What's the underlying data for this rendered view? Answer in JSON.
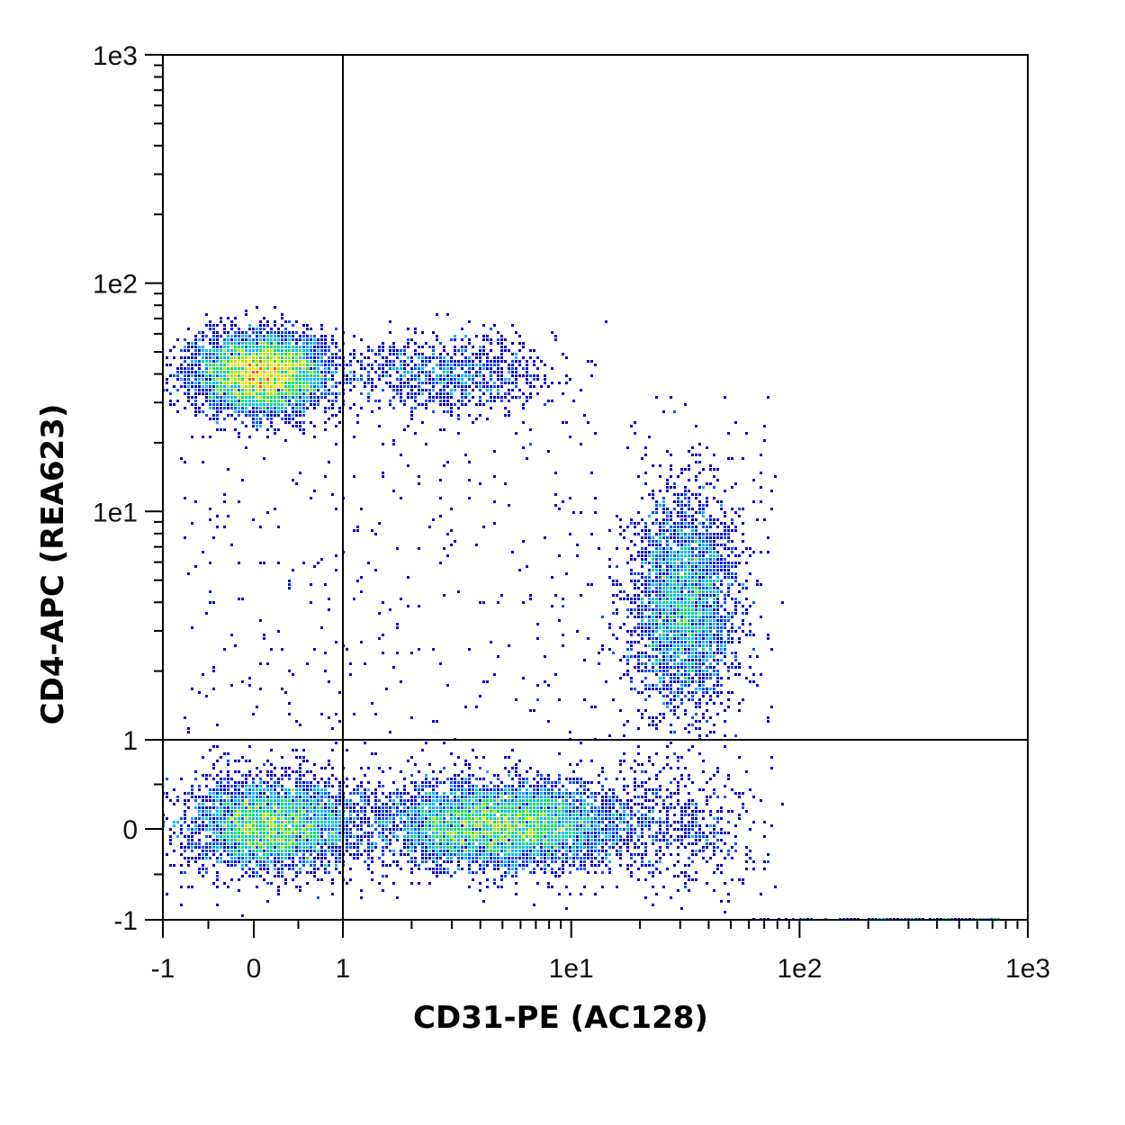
{
  "chart_data": {
    "type": "scatter",
    "subtype": "flow-cytometry density dot plot (hlog scale)",
    "xlabel": "CD31-PE (AC128)",
    "ylabel": "CD4-APC (REA623)",
    "x_scale": "hybrid-log",
    "y_scale": "hybrid-log",
    "xlim": [
      -1,
      1000
    ],
    "ylim": [
      -1,
      1000
    ],
    "x_ticks": [
      {
        "value": -1,
        "label": "-1"
      },
      {
        "value": 0,
        "label": "0"
      },
      {
        "value": 1,
        "label": "1"
      },
      {
        "value": 10,
        "label": "1e1"
      },
      {
        "value": 100,
        "label": "1e2"
      },
      {
        "value": 1000,
        "label": "1e3"
      }
    ],
    "y_ticks": [
      {
        "value": -1,
        "label": "-1"
      },
      {
        "value": 0,
        "label": "0"
      },
      {
        "value": 1,
        "label": "1"
      },
      {
        "value": 10,
        "label": "1e1"
      },
      {
        "value": 100,
        "label": "1e2"
      },
      {
        "value": 1000,
        "label": "1e3"
      }
    ],
    "quadrant_gate": {
      "x": 1,
      "y": 1
    },
    "grid": false,
    "legend": "none",
    "color_scale": [
      "#0000d0",
      "#0050ff",
      "#00b4ff",
      "#00e060",
      "#a8e000",
      "#ffe000",
      "#ff5000"
    ],
    "populations": [
      {
        "center_x": 0.1,
        "center_y": 40,
        "count": 4500,
        "density": "high"
      },
      {
        "center_x": 3,
        "center_y": 40,
        "count": 900,
        "density": "low"
      },
      {
        "center_x": 31,
        "center_y": 4,
        "count": 3000,
        "density": "medium"
      },
      {
        "center_x": 0.2,
        "center_y": 0.05,
        "count": 3500,
        "density": "high"
      },
      {
        "center_x": 5,
        "center_y": 0.05,
        "count": 5000,
        "density": "high"
      },
      {
        "center_x": 30,
        "center_y": 0,
        "count": 400,
        "density": "low"
      }
    ]
  }
}
